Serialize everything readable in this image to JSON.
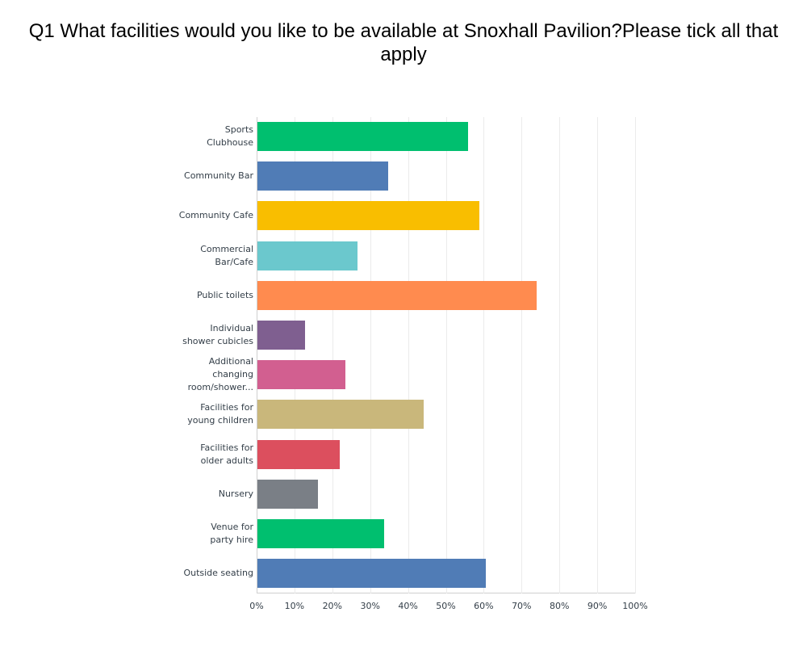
{
  "title": "Q1 What facilities would you like to be available at Snoxhall Pavilion?Please tick all that apply",
  "chart_data": {
    "type": "bar",
    "orientation": "horizontal",
    "title": "Q1 What facilities would you like to be available at Snoxhall Pavilion?Please tick all that apply",
    "xlabel": "",
    "ylabel": "",
    "xlim": [
      0,
      100
    ],
    "grid": true,
    "x_tick_labels": [
      "0%",
      "10%",
      "20%",
      "30%",
      "40%",
      "50%",
      "60%",
      "70%",
      "80%",
      "90%",
      "100%"
    ],
    "categories": [
      "Sports Clubhouse",
      "Community Bar",
      "Community Cafe",
      "Commercial Bar/Cafe",
      "Public toilets",
      "Individual shower cubicles",
      "Additional changing room/shower...",
      "Facilities for young children",
      "Facilities for older adults",
      "Nursery",
      "Venue for party hire",
      "Outside seating"
    ],
    "values": [
      55.6,
      34.5,
      58.6,
      26.4,
      73.8,
      12.6,
      23.2,
      43.9,
      21.7,
      16.0,
      33.5,
      60.3
    ],
    "colors": [
      "#00bf6f",
      "#507cb6",
      "#f9be00",
      "#6bc8cd",
      "#ff8b4f",
      "#7f5f90",
      "#d25f90",
      "#c9b77b",
      "#dc4f5e",
      "#7a7f86",
      "#00bf6f",
      "#507cb6"
    ],
    "unit": "%"
  },
  "labels": [
    [
      "Sports",
      "Clubhouse"
    ],
    [
      "Community Bar"
    ],
    [
      "Community Cafe"
    ],
    [
      "Commercial",
      "Bar/Cafe"
    ],
    [
      "Public toilets"
    ],
    [
      "Individual",
      "shower cubicles"
    ],
    [
      "Additional",
      "changing",
      "room/shower..."
    ],
    [
      "Facilities for",
      "young children"
    ],
    [
      "Facilities for",
      "older adults"
    ],
    [
      "Nursery"
    ],
    [
      "Venue for",
      "party hire"
    ],
    [
      "Outside seating"
    ]
  ]
}
